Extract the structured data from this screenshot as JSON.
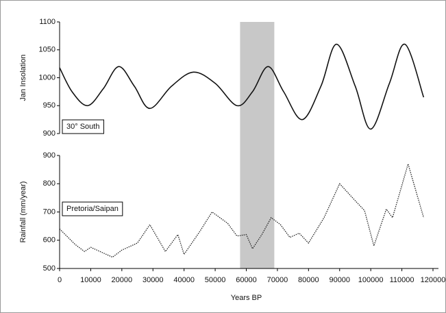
{
  "chart_data": [
    {
      "type": "line",
      "ylabel": "Jan Insolation",
      "xlim": [
        0,
        120000
      ],
      "ylim": [
        900,
        1100
      ],
      "yticks": [
        900,
        950,
        1000,
        1050,
        1100
      ],
      "highlight": [
        58000,
        69000
      ],
      "highlight_color": "#c8c8c8",
      "line_style": "solid",
      "smooth": true,
      "x": [
        0,
        4000,
        9000,
        14000,
        19000,
        24000,
        29000,
        36000,
        43000,
        50000,
        57000,
        62000,
        67000,
        72000,
        78000,
        84000,
        89000,
        95000,
        100000,
        106000,
        111000,
        117000
      ],
      "series": [
        {
          "name": "30° South",
          "color": "#111111",
          "values": [
            1018,
            975,
            950,
            980,
            1020,
            985,
            945,
            985,
            1010,
            990,
            950,
            975,
            1020,
            975,
            925,
            985,
            1060,
            985,
            908,
            990,
            1060,
            965
          ]
        }
      ]
    },
    {
      "type": "line",
      "ylabel": "Rainfall (mm/year)",
      "xlabel": "Years BP",
      "xlim": [
        0,
        120000
      ],
      "ylim": [
        500,
        900
      ],
      "yticks": [
        500,
        600,
        700,
        800,
        900
      ],
      "xticks": [
        0,
        10000,
        20000,
        30000,
        40000,
        50000,
        60000,
        70000,
        80000,
        90000,
        100000,
        110000,
        120000
      ],
      "line_style": "dotted",
      "smooth": false,
      "x": [
        0,
        5000,
        8000,
        10000,
        13000,
        17000,
        20000,
        25000,
        29000,
        34000,
        38000,
        40000,
        45000,
        49000,
        54000,
        57000,
        60000,
        62000,
        65000,
        68000,
        71000,
        74000,
        77000,
        80000,
        85000,
        90000,
        95000,
        98000,
        101000,
        105000,
        107000,
        112000,
        117000
      ],
      "series": [
        {
          "name": "Pretoria/Saipan",
          "color": "#222222",
          "values": [
            640,
            585,
            560,
            575,
            560,
            540,
            565,
            590,
            655,
            560,
            620,
            550,
            630,
            700,
            660,
            615,
            620,
            570,
            620,
            680,
            655,
            610,
            625,
            590,
            680,
            800,
            740,
            705,
            580,
            710,
            680,
            870,
            680
          ]
        }
      ]
    }
  ]
}
